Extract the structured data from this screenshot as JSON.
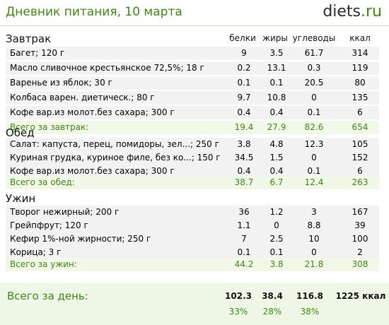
{
  "header": {
    "title": "Дневник питания, 10 марта",
    "logo_main": "diets",
    "logo_domain": ".ru"
  },
  "columns": {
    "protein": "белки",
    "fat": "жиры",
    "carbs": "углеводы",
    "kcal": "ккал"
  },
  "meals": [
    {
      "name": "Завтрак",
      "items": [
        {
          "name": "Багет; 120 г",
          "p": "9",
          "f": "3.5",
          "c": "61.7",
          "k": "314"
        },
        {
          "name": "Масло сливочное крестьянское 72,5%; 18 г",
          "p": "0.2",
          "f": "13.1",
          "c": "0.3",
          "k": "119"
        },
        {
          "name": "Варенье из яблок; 30 г",
          "p": "0.1",
          "f": "0.1",
          "c": "20.5",
          "k": "80"
        },
        {
          "name": "Колбаса варен. диетическ.; 80 г",
          "p": "9.7",
          "f": "10.8",
          "c": "0",
          "k": "135"
        },
        {
          "name": "Кофе вар.из молот.без сахара; 300 г",
          "p": "0.4",
          "f": "0.4",
          "c": "0.1",
          "k": "6"
        }
      ],
      "total": {
        "label": "Всего за завтрак:",
        "p": "19.4",
        "f": "27.9",
        "c": "82.6",
        "k": "654"
      }
    },
    {
      "name": "Обед",
      "items": [
        {
          "name": "Салат: капуста, перец, помидоры, зел...; 250 г",
          "p": "3.8",
          "f": "4.8",
          "c": "12.3",
          "k": "105"
        },
        {
          "name": "Куриная грудка, куриное филе, без ко...; 150 г",
          "p": "34.5",
          "f": "1.5",
          "c": "0",
          "k": "152"
        },
        {
          "name": "Кофе вар.из молот.без сахара; 300 г",
          "p": "0.4",
          "f": "0.4",
          "c": "0.1",
          "k": "6"
        }
      ],
      "total": {
        "label": "Всего за обед:",
        "p": "38.7",
        "f": "6.7",
        "c": "12.4",
        "k": "263"
      }
    },
    {
      "name": "Ужин",
      "items": [
        {
          "name": "Творог нежирный; 200 г",
          "p": "36",
          "f": "1.2",
          "c": "3",
          "k": "167"
        },
        {
          "name": "Грейпфрут; 120 г",
          "p": "1.1",
          "f": "0",
          "c": "8.8",
          "k": "39"
        },
        {
          "name": "Кефир 1%-ной жирности; 250 г",
          "p": "7",
          "f": "2.5",
          "c": "10",
          "k": "100"
        },
        {
          "name": "Корица; 3 г",
          "p": "0.1",
          "f": "0.1",
          "c": "0",
          "k": "2"
        }
      ],
      "total": {
        "label": "Всего за ужин:",
        "p": "44.2",
        "f": "3.8",
        "c": "21.8",
        "k": "308"
      }
    }
  ],
  "day": {
    "label": "Всего за день:",
    "p": "102.3",
    "f": "38.4",
    "c": "116.8",
    "k": "1225 ккал",
    "p_pct": "33%",
    "f_pct": "28%",
    "c_pct": "38%"
  },
  "colors": {
    "accent": "#3b8a0f",
    "row_bg": "#f2f2f2",
    "total_bg": "#f1f8e8",
    "day_bg": "#eef7e5"
  }
}
